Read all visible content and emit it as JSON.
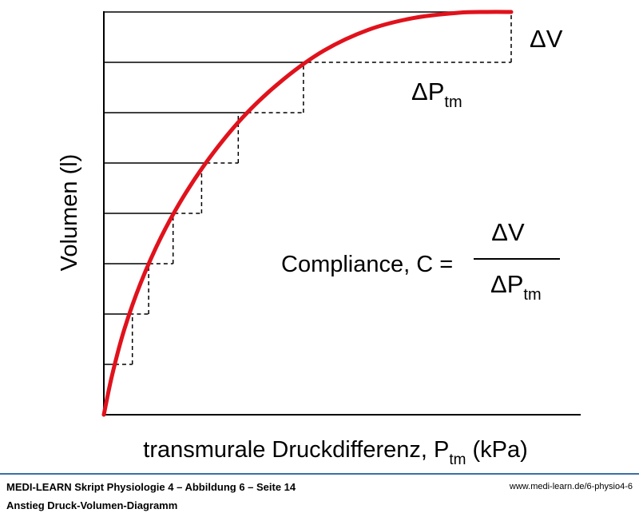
{
  "chart_data": {
    "type": "line",
    "title": "",
    "xlabel": "transmurale Druckdifferenz, P",
    "xlabel_subscript": "tm",
    "xlabel_unit": "(kPa)",
    "ylabel": "Volumen (l)",
    "grid": false,
    "x_tick_labels": false,
    "y_tick_labels": false,
    "series": [
      {
        "color": "#e0121c",
        "x": [
          0,
          0.02,
          0.05,
          0.09,
          0.14,
          0.2,
          0.27,
          0.35,
          0.44,
          0.54,
          0.65,
          0.76,
          0.87,
          0.94,
          1.0
        ],
        "y": [
          0,
          0.097,
          0.211,
          0.326,
          0.44,
          0.549,
          0.652,
          0.748,
          0.832,
          0.904,
          0.956,
          0.985,
          0.998,
          1.0,
          1.0
        ]
      }
    ],
    "steps": [
      {
        "p": 0.07,
        "v": 0.125
      },
      {
        "p": 0.11,
        "v": 0.25
      },
      {
        "p": 0.17,
        "v": 0.375
      },
      {
        "p": 0.24,
        "v": 0.5
      },
      {
        "p": 0.33,
        "v": 0.625
      },
      {
        "p": 0.49,
        "v": 0.75
      },
      {
        "p": 1.0,
        "v": 0.875
      }
    ],
    "horizontal_line_levels": [
      0.125,
      0.25,
      0.375,
      0.5,
      0.625,
      0.75,
      0.875,
      1.0
    ],
    "annotations": {
      "delta_v": "ΔV",
      "delta_p": "ΔP",
      "subscript": "tm",
      "compliance_label": "Compliance, C =",
      "numerator": "ΔV",
      "denominator": "ΔP",
      "denominator_subscript": "tm"
    }
  },
  "footer": {
    "source": "MEDI-LEARN Skript Physiologie 4 – Abbildung 6 – Seite 14",
    "url": "www.medi-learn.de/6-physio4-6",
    "caption": "Anstieg Druck-Volumen-Diagramm"
  }
}
